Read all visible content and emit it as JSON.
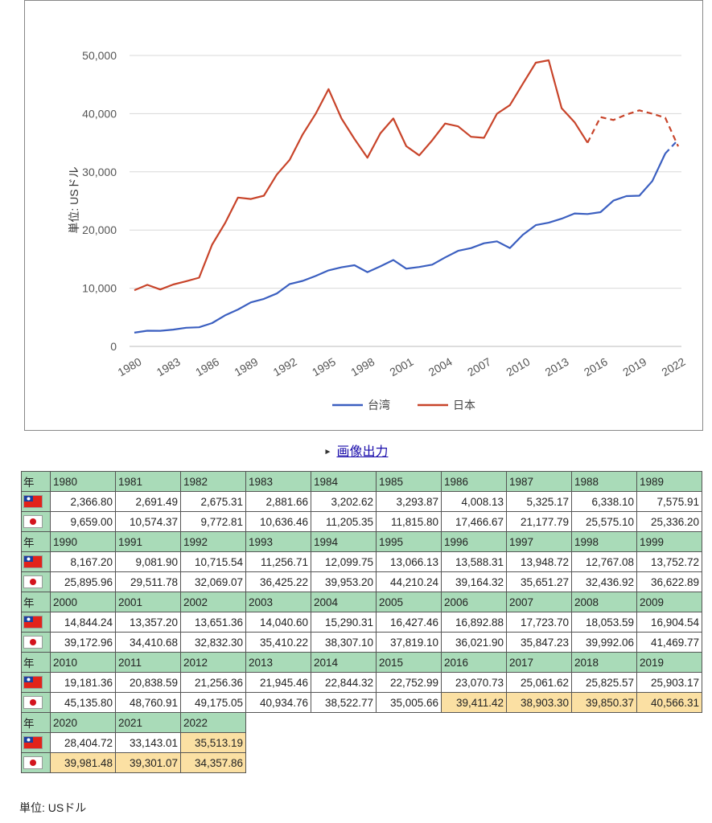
{
  "chart_data": {
    "type": "line",
    "ylabel": "単位: USドル",
    "ylim": [
      0,
      50000
    ],
    "yticks": [
      0,
      10000,
      20000,
      30000,
      40000,
      50000
    ],
    "ytick_labels": [
      "0",
      "10,000",
      "20,000",
      "30,000",
      "40,000",
      "50,000"
    ],
    "xticks": [
      "1980",
      "1983",
      "1986",
      "1989",
      "1992",
      "1995",
      "1998",
      "2001",
      "2004",
      "2007",
      "2010",
      "2013",
      "2016",
      "2019",
      "2022"
    ],
    "x": [
      1980,
      1981,
      1982,
      1983,
      1984,
      1985,
      1986,
      1987,
      1988,
      1989,
      1990,
      1991,
      1992,
      1993,
      1994,
      1995,
      1996,
      1997,
      1998,
      1999,
      2000,
      2001,
      2002,
      2003,
      2004,
      2005,
      2006,
      2007,
      2008,
      2009,
      2010,
      2011,
      2012,
      2013,
      2014,
      2015,
      2016,
      2017,
      2018,
      2019,
      2020,
      2021,
      2022
    ],
    "grid": true,
    "legend_position": "bottom",
    "series": [
      {
        "name": "台湾",
        "color": "#3b5fc0",
        "estimate_from": 2022,
        "values": [
          2366.8,
          2691.49,
          2675.31,
          2881.66,
          3202.62,
          3293.87,
          4008.13,
          5325.17,
          6338.1,
          7575.91,
          8167.2,
          9081.9,
          10715.54,
          11256.71,
          12099.75,
          13066.13,
          13588.31,
          13948.72,
          12767.08,
          13752.72,
          14844.24,
          13357.2,
          13651.36,
          14040.6,
          15290.31,
          16427.46,
          16892.88,
          17723.7,
          18053.59,
          16904.54,
          19181.36,
          20838.59,
          21256.36,
          21945.46,
          22844.32,
          22752.99,
          23070.73,
          25061.62,
          25825.57,
          25903.17,
          28404.72,
          33143.01,
          35513.19
        ]
      },
      {
        "name": "日本",
        "color": "#c8442a",
        "estimate_from": 2016,
        "values": [
          9659.0,
          10574.37,
          9772.81,
          10636.46,
          11205.35,
          11815.8,
          17466.67,
          21177.79,
          25575.1,
          25336.2,
          25895.96,
          29511.78,
          32069.07,
          36425.22,
          39953.2,
          44210.24,
          39164.32,
          35651.27,
          32436.92,
          36622.89,
          39172.96,
          34410.68,
          32832.3,
          35410.22,
          38307.1,
          37819.1,
          36021.9,
          35847.23,
          39992.06,
          41469.77,
          45135.8,
          48760.91,
          49175.05,
          40934.76,
          38522.77,
          35005.66,
          39411.42,
          38903.3,
          39850.37,
          40566.31,
          39981.48,
          39301.07,
          34357.86
        ]
      }
    ]
  },
  "export_link": "画像出力",
  "table": {
    "year_header": "年",
    "rows": [
      {
        "years": [
          "1980",
          "1981",
          "1982",
          "1983",
          "1984",
          "1985",
          "1986",
          "1987",
          "1988",
          "1989"
        ],
        "taiwan": [
          "2,366.80",
          "2,691.49",
          "2,675.31",
          "2,881.66",
          "3,202.62",
          "3,293.87",
          "4,008.13",
          "5,325.17",
          "6,338.10",
          "7,575.91"
        ],
        "japan": [
          "9,659.00",
          "10,574.37",
          "9,772.81",
          "10,636.46",
          "11,205.35",
          "11,815.80",
          "17,466.67",
          "21,177.79",
          "25,575.10",
          "25,336.20"
        ]
      },
      {
        "years": [
          "1990",
          "1991",
          "1992",
          "1993",
          "1994",
          "1995",
          "1996",
          "1997",
          "1998",
          "1999"
        ],
        "taiwan": [
          "8,167.20",
          "9,081.90",
          "10,715.54",
          "11,256.71",
          "12,099.75",
          "13,066.13",
          "13,588.31",
          "13,948.72",
          "12,767.08",
          "13,752.72"
        ],
        "japan": [
          "25,895.96",
          "29,511.78",
          "32,069.07",
          "36,425.22",
          "39,953.20",
          "44,210.24",
          "39,164.32",
          "35,651.27",
          "32,436.92",
          "36,622.89"
        ]
      },
      {
        "years": [
          "2000",
          "2001",
          "2002",
          "2003",
          "2004",
          "2005",
          "2006",
          "2007",
          "2008",
          "2009"
        ],
        "taiwan": [
          "14,844.24",
          "13,357.20",
          "13,651.36",
          "14,040.60",
          "15,290.31",
          "16,427.46",
          "16,892.88",
          "17,723.70",
          "18,053.59",
          "16,904.54"
        ],
        "japan": [
          "39,172.96",
          "34,410.68",
          "32,832.30",
          "35,410.22",
          "38,307.10",
          "37,819.10",
          "36,021.90",
          "35,847.23",
          "39,992.06",
          "41,469.77"
        ]
      },
      {
        "years": [
          "2010",
          "2011",
          "2012",
          "2013",
          "2014",
          "2015",
          "2016",
          "2017",
          "2018",
          "2019"
        ],
        "taiwan": [
          "19,181.36",
          "20,838.59",
          "21,256.36",
          "21,945.46",
          "22,844.32",
          "22,752.99",
          "23,070.73",
          "25,061.62",
          "25,825.57",
          "25,903.17"
        ],
        "japan": [
          "45,135.80",
          "48,760.91",
          "49,175.05",
          "40,934.76",
          "38,522.77",
          "35,005.66",
          "39,411.42",
          "38,903.30",
          "39,850.37",
          "40,566.31"
        ],
        "japan_estimated": [
          false,
          false,
          false,
          false,
          false,
          false,
          true,
          true,
          true,
          true
        ]
      },
      {
        "years": [
          "2020",
          "2021",
          "2022"
        ],
        "taiwan": [
          "28,404.72",
          "33,143.01",
          "35,513.19"
        ],
        "japan": [
          "39,981.48",
          "39,301.07",
          "34,357.86"
        ],
        "taiwan_estimated": [
          false,
          false,
          true
        ],
        "japan_estimated": [
          true,
          true,
          true
        ]
      }
    ]
  },
  "unit_note": "単位: USドル"
}
